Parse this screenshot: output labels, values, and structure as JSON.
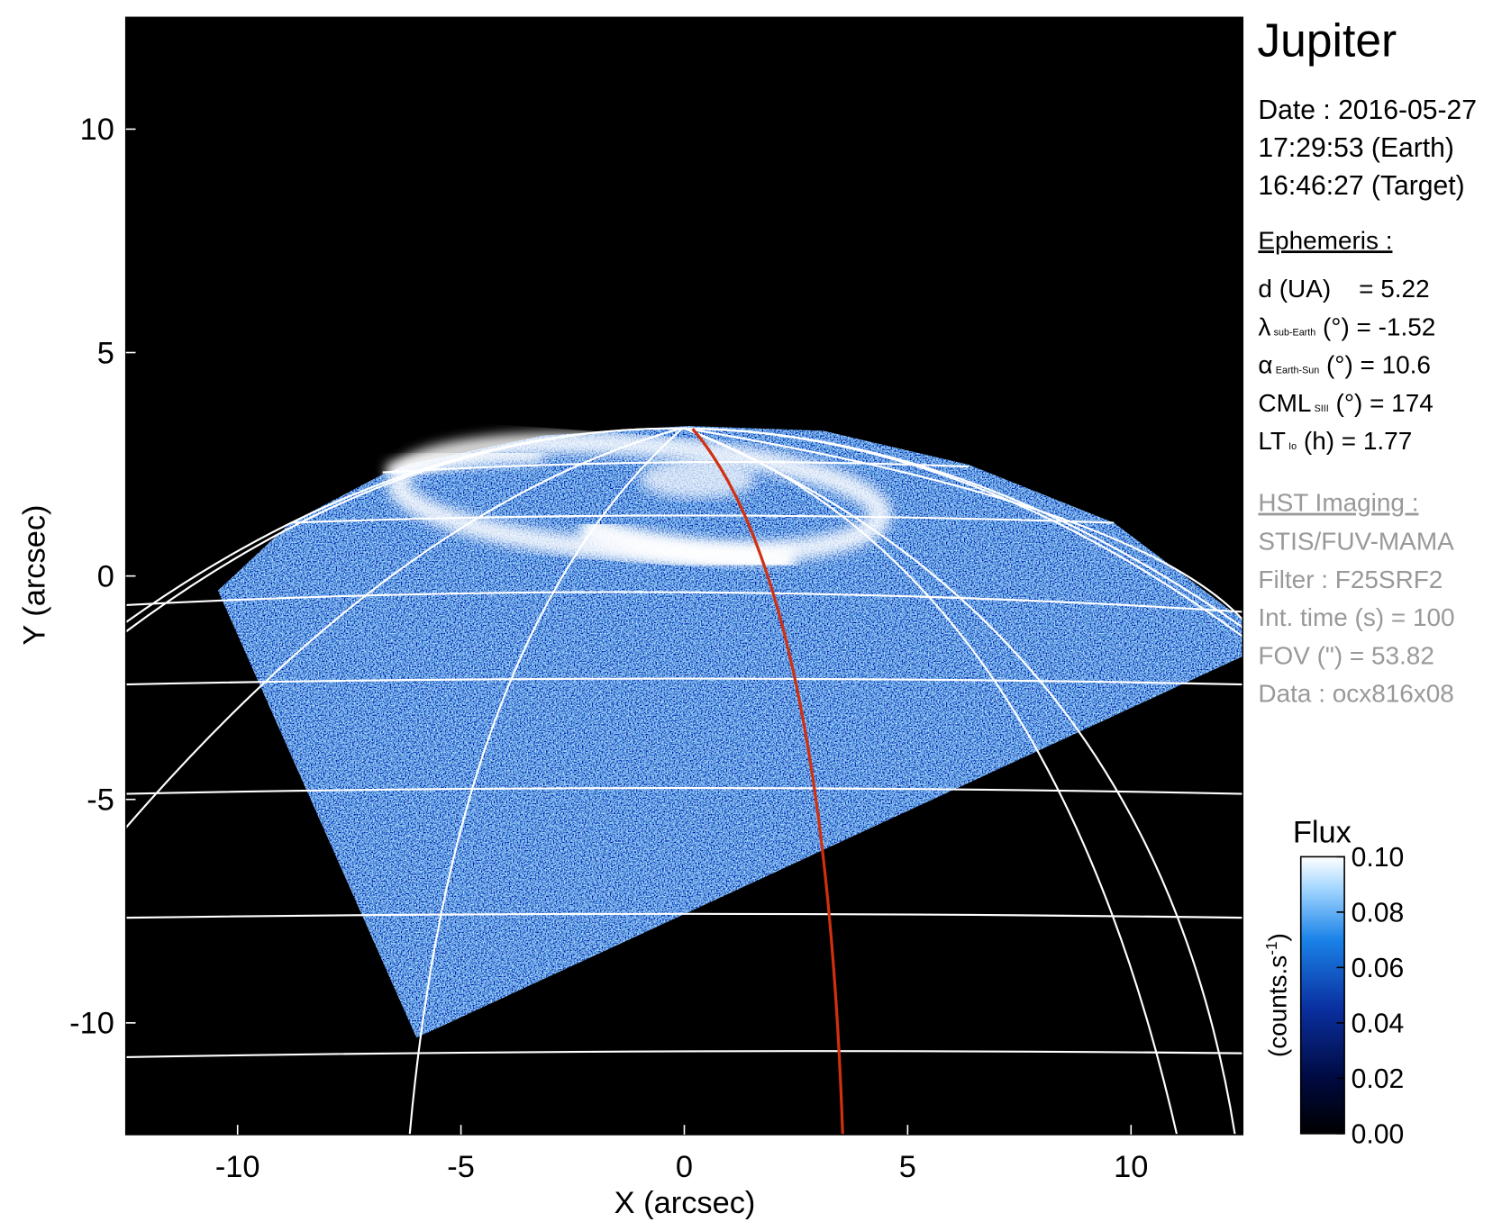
{
  "chart_data": {
    "type": "image",
    "xlabel": "X (arcsec)",
    "ylabel": "Y (arcsec)",
    "xlim": [
      -12.5,
      12.5
    ],
    "ylim": [
      -12.5,
      12.5
    ],
    "xticks": [
      -10,
      -5,
      0,
      5,
      10
    ],
    "yticks": [
      -10,
      -5,
      0,
      5,
      10
    ],
    "colorbar": {
      "title": "Flux",
      "label": "(counts.s",
      "label_superscript": "-1",
      "label_end": ")",
      "lim": [
        0,
        0.1
      ],
      "ticks": [
        {
          "value": 0,
          "label": "0.00"
        },
        {
          "value": 0.02,
          "label": "0.02"
        },
        {
          "value": 0.04,
          "label": "0.04"
        },
        {
          "value": 0.06,
          "label": "0.06"
        },
        {
          "value": 0.08,
          "label": "0.08"
        },
        {
          "value": 0.1,
          "label": "0.10"
        }
      ]
    }
  },
  "info": {
    "title": "Jupiter",
    "date_lines": [
      "Date : 2016-05-27",
      "17:29:53 (Earth)",
      "16:46:27 (Target)"
    ],
    "ephemeris_heading": "Ephemeris :",
    "ephemeris": [
      {
        "text": "d (UA)    = 5.22"
      },
      {
        "symbol": "λ",
        "subscript": "sub-Earth",
        "text": " (°) = -1.52"
      },
      {
        "symbol": "α",
        "subscript": "Earth-Sun",
        "text": " (°) = 10.6"
      },
      {
        "symbol": "CML",
        "subscript": "SIII",
        "text": " (°) = 174"
      },
      {
        "symbol": "LT",
        "subscript": "Io",
        "text": " (h) = 1.77"
      }
    ],
    "imaging_heading": "HST Imaging :",
    "imaging": [
      "STIS/FUV-MAMA",
      "Filter : F25SRF2",
      "Int. time (s) = 100",
      "FOV (\") = 53.82",
      "Data : ocx816x08"
    ]
  }
}
